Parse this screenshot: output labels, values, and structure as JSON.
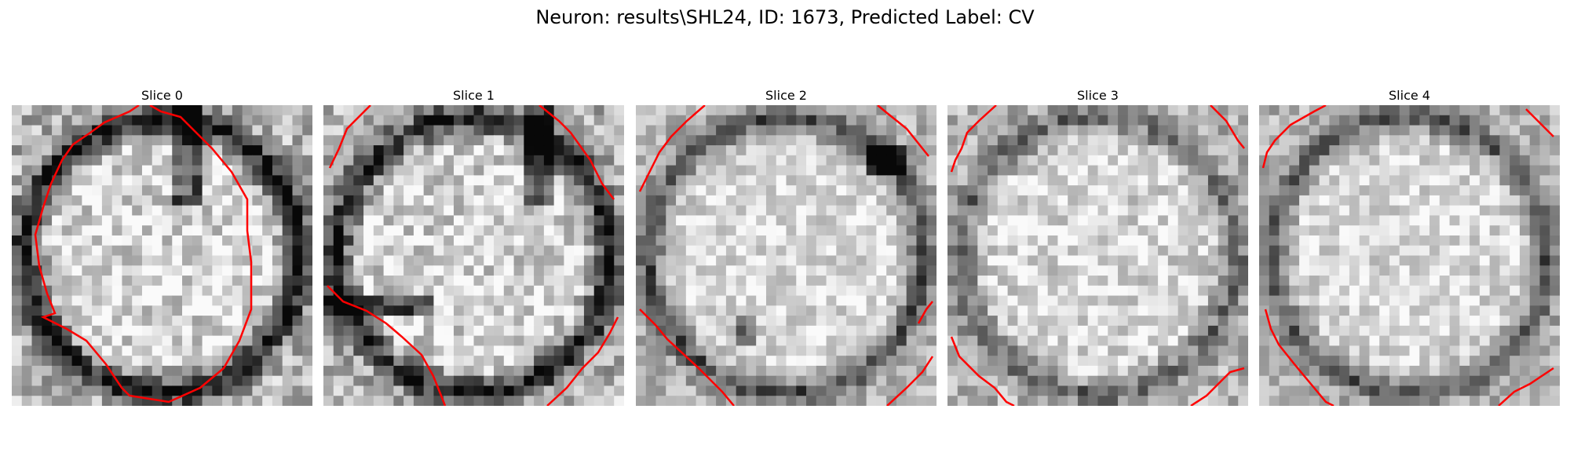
{
  "figure": {
    "title": "Neuron: results\\SHL24, ID: 1673, Predicted Label: CV"
  },
  "slices": [
    {
      "title": "Slice 0",
      "seed": 11,
      "ring": 0.9,
      "contrast": 0.85
    },
    {
      "title": "Slice 1",
      "seed": 23,
      "ring": 0.85,
      "contrast": 0.9
    },
    {
      "title": "Slice 2",
      "seed": 37,
      "ring": 0.55,
      "contrast": 0.6
    },
    {
      "title": "Slice 3",
      "seed": 41,
      "ring": 0.45,
      "contrast": 0.7
    },
    {
      "title": "Slice 4",
      "seed": 53,
      "ring": 0.5,
      "contrast": 0.6
    }
  ],
  "colors": {
    "contour": "#ff0000",
    "background": "#ffffff"
  }
}
